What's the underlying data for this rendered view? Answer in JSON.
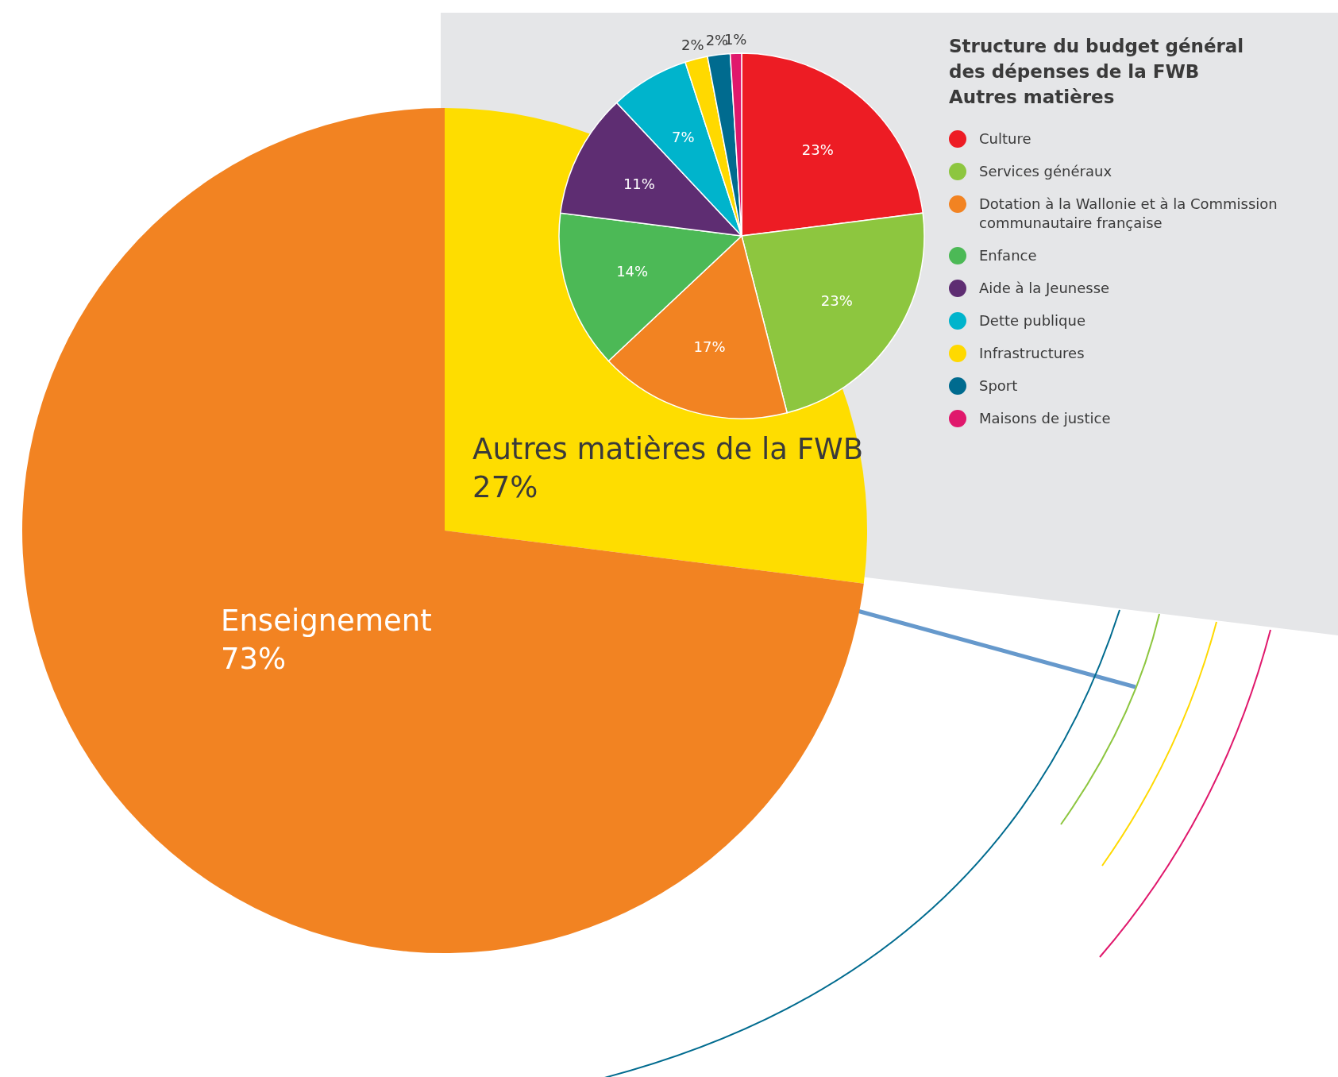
{
  "chart_data": [
    {
      "type": "pie",
      "categories": [
        "Autres matières de la FWB",
        "Enseignement"
      ],
      "values": [
        27,
        73
      ],
      "colors": [
        "#fedd00",
        "#f28322"
      ],
      "value_labels": [
        "27%",
        "73%"
      ]
    },
    {
      "type": "pie",
      "title": "Structure du budget général des dépenses de la FWB Autres matières",
      "categories": [
        "Culture",
        "Services généraux",
        "Dotation à la Wallonie et à la Commission communautaire française",
        "Enfance",
        "Aide à la Jeunesse",
        "Dette publique",
        "Infrastructures",
        "Sport",
        "Maisons de justice"
      ],
      "values": [
        23,
        23,
        17,
        14,
        11,
        7,
        2,
        2,
        1
      ],
      "colors": [
        "#ed1c24",
        "#8dc63f",
        "#f28322",
        "#4cb956",
        "#5e2d72",
        "#00b4cc",
        "#ffd900",
        "#006b8f",
        "#e0186c"
      ],
      "value_labels": [
        "23%",
        "23%",
        "17%",
        "14%",
        "11%",
        "7%",
        "2%",
        "2%",
        "1%"
      ],
      "legend": "right"
    }
  ]
}
